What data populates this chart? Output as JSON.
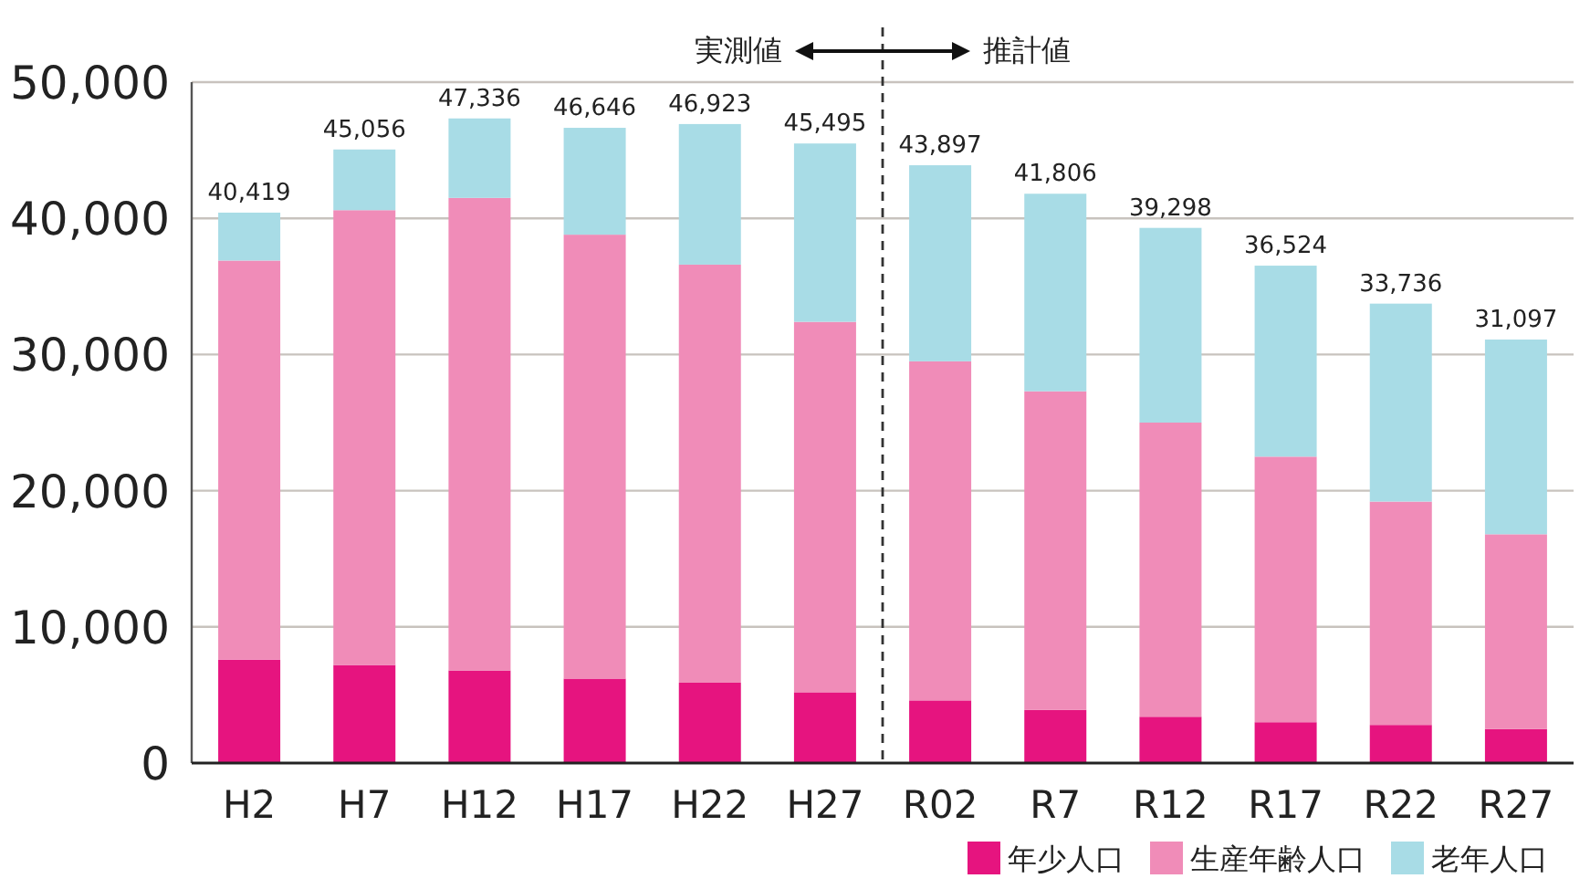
{
  "chart_data": {
    "type": "bar",
    "stacked": true,
    "categories": [
      "H2",
      "H7",
      "H12",
      "H17",
      "H22",
      "H27",
      "R02",
      "R7",
      "R12",
      "R17",
      "R22",
      "R27"
    ],
    "series": [
      {
        "name": "年少人口",
        "color": "#e6147f",
        "values": [
          7600,
          7200,
          6800,
          6200,
          5900,
          5200,
          4600,
          3900,
          3400,
          3000,
          2800,
          2500
        ]
      },
      {
        "name": "生産年齢人口",
        "color": "#f08cb8",
        "values": [
          29300,
          33400,
          34700,
          32600,
          30700,
          27200,
          24900,
          23400,
          21600,
          19500,
          16400,
          14300
        ]
      },
      {
        "name": "老年人口",
        "color": "#a8dce6",
        "values": [
          3519,
          4456,
          5836,
          7846,
          10323,
          13095,
          14397,
          14506,
          14298,
          14024,
          14536,
          14297
        ]
      }
    ],
    "totals": [
      "40,419",
      "45,056",
      "47,336",
      "46,646",
      "46,923",
      "45,495",
      "43,897",
      "41,806",
      "39,298",
      "36,524",
      "33,736",
      "31,097"
    ],
    "ylim": [
      0,
      50000
    ],
    "yticks": [
      {
        "value": 0,
        "label": "0"
      },
      {
        "value": 10000,
        "label": "10,000"
      },
      {
        "value": 20000,
        "label": "20,000"
      },
      {
        "value": 30000,
        "label": "30,000"
      },
      {
        "value": 40000,
        "label": "40,000"
      },
      {
        "value": 50000,
        "label": "50,000"
      }
    ],
    "annotations": [
      "実測値",
      "推計値"
    ],
    "grid": "y",
    "legend": "bottom right"
  }
}
